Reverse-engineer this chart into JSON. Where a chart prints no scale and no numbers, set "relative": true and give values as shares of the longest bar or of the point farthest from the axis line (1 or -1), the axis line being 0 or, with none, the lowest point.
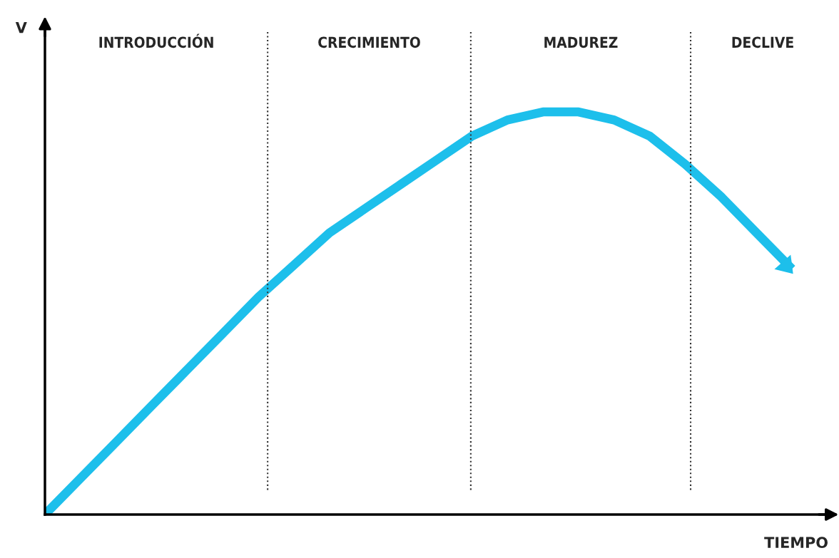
{
  "chart_data": {
    "type": "line",
    "relative": true,
    "xlabel": "TIEMPO",
    "categories": [
      null,
      null,
      null,
      null,
      null,
      null,
      null,
      null,
      null,
      null,
      null,
      null,
      null,
      null,
      null,
      null,
      null,
      null,
      null,
      null,
      null,
      null
    ],
    "series": [
      {
        "color": "#1dbfeb",
        "values": [
          0,
          0.09,
          0.18,
          0.27,
          0.36,
          0.45,
          0.54,
          0.62,
          0.7,
          0.76,
          0.82,
          0.88,
          0.94,
          0.98,
          1.0,
          1.0,
          0.98,
          0.94,
          0.87,
          0.79,
          0.7,
          0.61
        ]
      }
    ],
    "annotations": [
      "INTRODUCCIÓN",
      "CRECIMIENTO",
      "MADUREZ",
      "DECLIVE",
      "V"
    ],
    "grid": false,
    "marker": "none",
    "line_style": "solid"
  }
}
